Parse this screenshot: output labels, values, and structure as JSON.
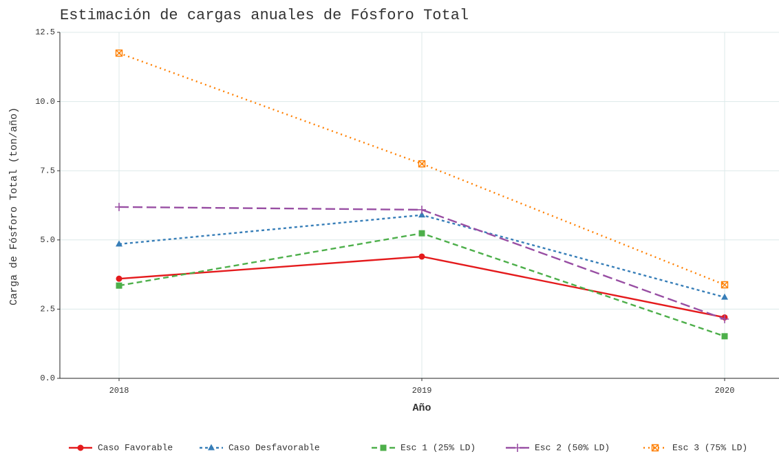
{
  "chart_data": {
    "type": "line",
    "title": "Estimación de cargas anuales de Fósforo Total",
    "x_label": "Año",
    "y_label": "Carga de Fósforo Total (ton/año)",
    "categories": [
      "2018",
      "2019",
      "2020"
    ],
    "ylim": [
      0,
      12.5
    ],
    "yticks": [
      {
        "value": 0,
        "label": "0.0"
      },
      {
        "value": 2.5,
        "label": "2.5"
      },
      {
        "value": 5,
        "label": "5.0"
      },
      {
        "value": 7.5,
        "label": "7.5"
      },
      {
        "value": 10,
        "label": "10.0"
      },
      {
        "value": 12.5,
        "label": "12.5"
      }
    ],
    "grid": true,
    "legend": "bottom",
    "series": [
      {
        "name": "Caso Favorable",
        "color": "#e41a1c",
        "linestyle": "solid",
        "marker": "circle",
        "values": [
          3.6,
          4.4,
          2.2
        ]
      },
      {
        "name": "Caso Desfavorable",
        "color": "#377eb8",
        "linestyle": "dotdash",
        "marker": "triangle",
        "values": [
          4.85,
          5.9,
          2.93
        ]
      },
      {
        "name": "Esc 1 (25% LD)",
        "color": "#4daf4a",
        "linestyle": "dashed",
        "marker": "square",
        "values": [
          3.35,
          5.24,
          1.52
        ]
      },
      {
        "name": "Esc 2 (50% LD)",
        "color": "#984ea3",
        "linestyle": "longdash",
        "marker": "plus",
        "values": [
          6.19,
          6.09,
          2.14
        ]
      },
      {
        "name": "Esc 3 (75% LD)",
        "color": "#ff7f00",
        "linestyle": "dotted",
        "marker": "boxx",
        "values": [
          11.75,
          7.75,
          3.38
        ]
      }
    ]
  }
}
